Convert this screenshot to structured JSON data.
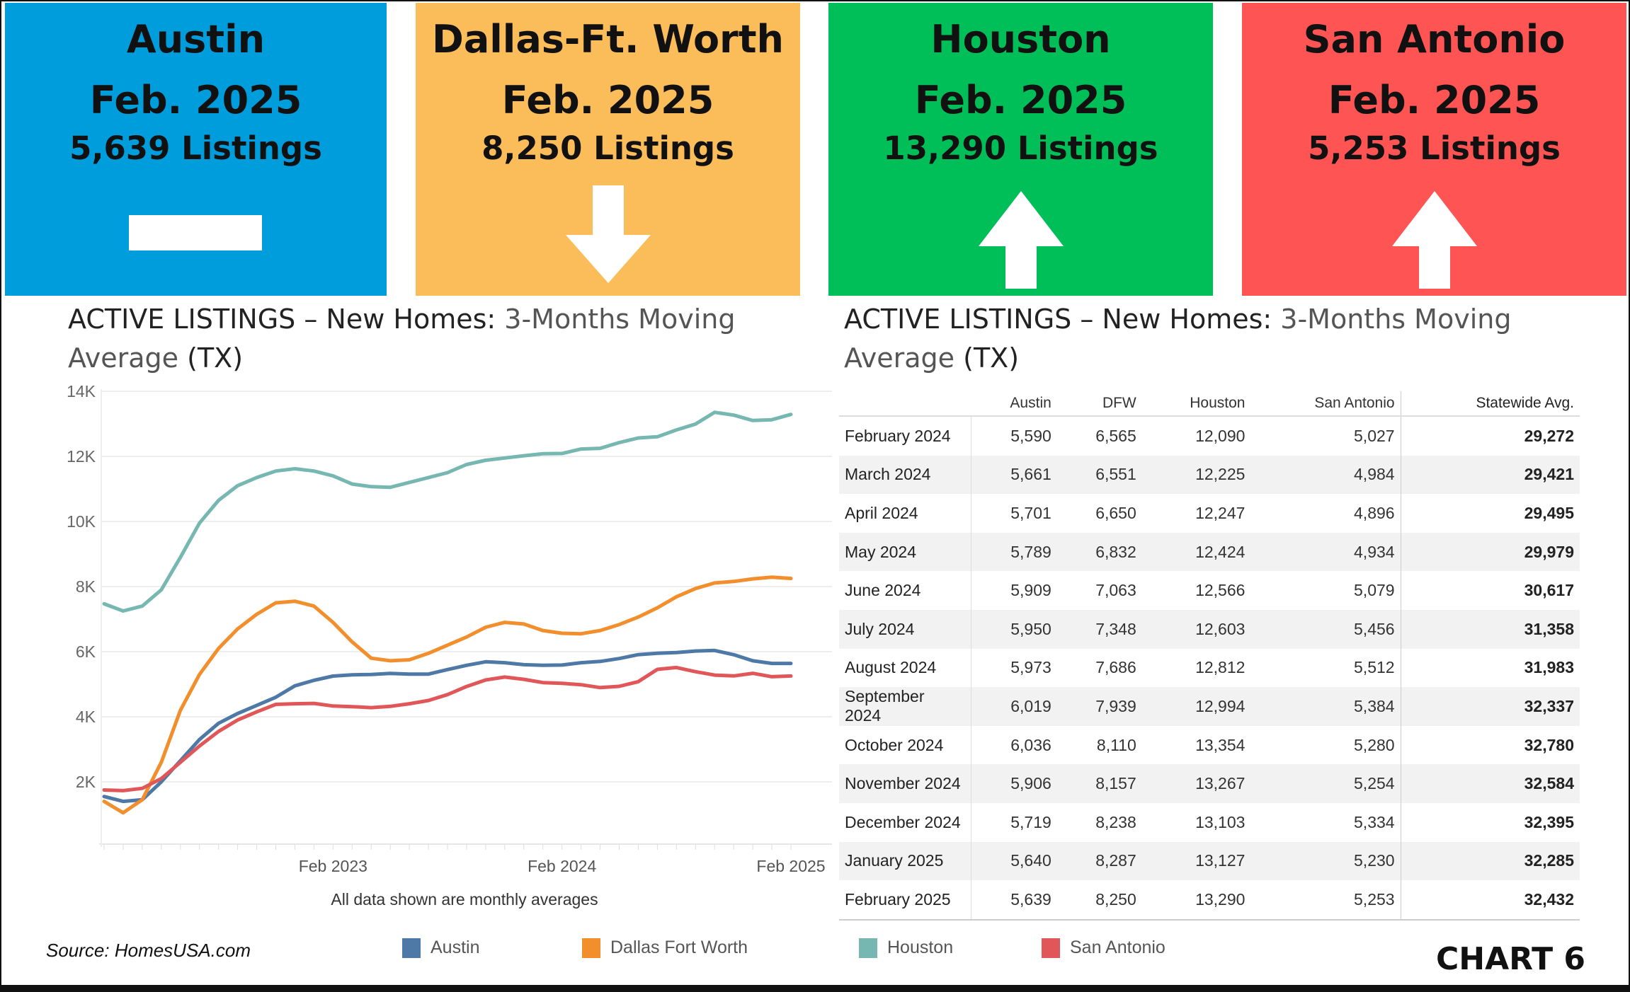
{
  "tiles": [
    {
      "city": "Austin",
      "month": "Feb. 2025",
      "count": "5,639 Listings",
      "color": "#009ddc",
      "icon": "flat-dash-icon"
    },
    {
      "city": "Dallas-Ft. Worth",
      "month": "Feb. 2025",
      "count": "8,250 Listings",
      "color": "#fbbc5a",
      "icon": "arrow-down-icon"
    },
    {
      "city": "Houston",
      "month": "Feb. 2025",
      "count": "13,290 Listings",
      "color": "#00bf58",
      "icon": "arrow-up-icon"
    },
    {
      "city": "San Antonio",
      "month": "Feb. 2025",
      "count": "5,253 Listings",
      "color": "#ff5454",
      "icon": "arrow-up-icon"
    }
  ],
  "left_title": {
    "main": "ACTIVE LISTINGS – New Homes: ",
    "soft": "3-Months  Moving",
    "line2": "Average",
    "tail": " (TX)"
  },
  "right_title": {
    "main": "ACTIVE LISTINGS – New Homes: ",
    "soft": "3-Months  Moving",
    "line2": "Average",
    "tail": " (TX)"
  },
  "chart_data": {
    "type": "line",
    "x": [
      "Feb 2022",
      "Mar 2022",
      "Apr 2022",
      "May 2022",
      "Jun 2022",
      "Jul 2022",
      "Aug 2022",
      "Sep 2022",
      "Oct 2022",
      "Nov 2022",
      "Dec 2022",
      "Jan 2023",
      "Feb 2023",
      "Mar 2023",
      "Apr 2023",
      "May 2023",
      "Jun 2023",
      "Jul 2023",
      "Aug 2023",
      "Sep 2023",
      "Oct 2023",
      "Nov 2023",
      "Dec 2023",
      "Jan 2024",
      "Feb 2024",
      "Mar 2024",
      "Apr 2024",
      "May 2024",
      "Jun 2024",
      "Jul 2024",
      "Aug 2024",
      "Sep 2024",
      "Oct 2024",
      "Nov 2024",
      "Dec 2024",
      "Jan 2025",
      "Feb 2025"
    ],
    "xticks": [
      "Feb 2023",
      "Feb 2024",
      "Feb 2025"
    ],
    "yticks": [
      "2K",
      "4K",
      "6K",
      "8K",
      "10K",
      "12K",
      "14K"
    ],
    "ylim": [
      0,
      14000
    ],
    "grid": true,
    "legend": "bottom",
    "note": "All data shown are monthly averages",
    "series": [
      {
        "name": "Austin",
        "color": "#4e79a7",
        "values": [
          1550,
          1400,
          1450,
          2000,
          2650,
          3300,
          3800,
          4100,
          4350,
          4600,
          4950,
          5120,
          5250,
          5290,
          5300,
          5330,
          5310,
          5310,
          5450,
          5580,
          5690,
          5660,
          5600,
          5580,
          5590,
          5661,
          5701,
          5789,
          5909,
          5950,
          5973,
          6019,
          6036,
          5906,
          5719,
          5640,
          5639
        ]
      },
      {
        "name": "Dallas Fort Worth",
        "color": "#f28e2b",
        "values": [
          1400,
          1050,
          1450,
          2600,
          4200,
          5300,
          6100,
          6700,
          7150,
          7500,
          7550,
          7400,
          6900,
          6300,
          5800,
          5720,
          5750,
          5950,
          6200,
          6450,
          6750,
          6900,
          6850,
          6650,
          6565,
          6551,
          6650,
          6832,
          7063,
          7348,
          7686,
          7939,
          8110,
          8157,
          8238,
          8287,
          8250
        ]
      },
      {
        "name": "Houston",
        "color": "#76b7b2",
        "values": [
          7470,
          7250,
          7400,
          7900,
          8900,
          9950,
          10650,
          11100,
          11350,
          11550,
          11620,
          11550,
          11400,
          11150,
          11070,
          11050,
          11200,
          11350,
          11500,
          11750,
          11880,
          11950,
          12020,
          12080,
          12090,
          12225,
          12247,
          12424,
          12566,
          12603,
          12812,
          12994,
          13354,
          13267,
          13103,
          13127,
          13290
        ]
      },
      {
        "name": "San Antonio",
        "color": "#e15759",
        "values": [
          1750,
          1730,
          1800,
          2100,
          2600,
          3100,
          3550,
          3900,
          4150,
          4380,
          4400,
          4410,
          4330,
          4310,
          4280,
          4320,
          4400,
          4500,
          4680,
          4930,
          5130,
          5220,
          5150,
          5050,
          5027,
          4984,
          4896,
          4934,
          5079,
          5456,
          5512,
          5384,
          5280,
          5254,
          5334,
          5230,
          5253
        ]
      }
    ]
  },
  "table": {
    "headers": [
      "",
      "Austin",
      "DFW",
      "Houston",
      "San Antonio",
      "Statewide Avg."
    ],
    "rows": [
      [
        "February 2024",
        "5,590",
        "6,565",
        "12,090",
        "5,027",
        "29,272"
      ],
      [
        "March 2024",
        "5,661",
        "6,551",
        "12,225",
        "4,984",
        "29,421"
      ],
      [
        "April 2024",
        "5,701",
        "6,650",
        "12,247",
        "4,896",
        "29,495"
      ],
      [
        "May 2024",
        "5,789",
        "6,832",
        "12,424",
        "4,934",
        "29,979"
      ],
      [
        "June 2024",
        "5,909",
        "7,063",
        "12,566",
        "5,079",
        "30,617"
      ],
      [
        "July 2024",
        "5,950",
        "7,348",
        "12,603",
        "5,456",
        "31,358"
      ],
      [
        "August 2024",
        "5,973",
        "7,686",
        "12,812",
        "5,512",
        "31,983"
      ],
      [
        "September 2024",
        "6,019",
        "7,939",
        "12,994",
        "5,384",
        "32,337"
      ],
      [
        "October 2024",
        "6,036",
        "8,110",
        "13,354",
        "5,280",
        "32,780"
      ],
      [
        "November 2024",
        "5,906",
        "8,157",
        "13,267",
        "5,254",
        "32,584"
      ],
      [
        "December 2024",
        "5,719",
        "8,238",
        "13,103",
        "5,334",
        "32,395"
      ],
      [
        "January 2025",
        "5,640",
        "8,287",
        "13,127",
        "5,230",
        "32,285"
      ],
      [
        "February 2025",
        "5,639",
        "8,250",
        "13,290",
        "5,253",
        "32,432"
      ]
    ]
  },
  "source": "Source: HomesUSA.com",
  "chart_label": "CHART 6"
}
